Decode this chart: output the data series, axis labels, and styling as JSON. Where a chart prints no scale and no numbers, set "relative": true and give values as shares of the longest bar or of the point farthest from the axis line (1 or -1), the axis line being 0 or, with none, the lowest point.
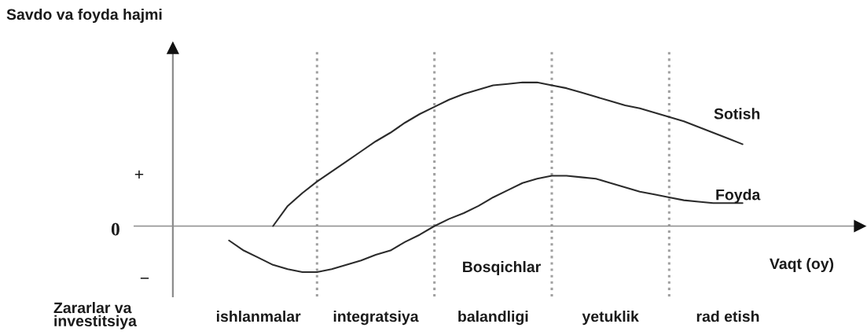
{
  "chart_data": {
    "type": "line",
    "relative": true,
    "ylabel": "Savdo va foyda hajmi",
    "xlabel": "Vaqt (oy)",
    "categories": [
      null,
      null,
      null,
      null,
      "ishlanmalar",
      null,
      null,
      null,
      null,
      null,
      null,
      null,
      "integratsiya",
      null,
      null,
      null,
      null,
      null,
      null,
      null,
      "balandligi",
      null,
      null,
      null,
      null,
      null,
      null,
      null,
      "yetuklik",
      null,
      null,
      null,
      null,
      null,
      null,
      null,
      "rad etish",
      null,
      null,
      null
    ],
    "series": [
      {
        "name": "Sotish",
        "color": "#2b2b2b",
        "values": [
          null,
          null,
          null,
          null,
          null,
          0,
          0.14,
          0.23,
          0.31,
          0.38,
          0.45,
          0.52,
          0.59,
          0.65,
          0.72,
          0.78,
          0.83,
          0.88,
          0.92,
          0.95,
          0.98,
          0.99,
          1.0,
          1.0,
          0.98,
          0.96,
          0.93,
          0.9,
          0.87,
          0.84,
          0.82,
          0.79,
          0.76,
          0.73,
          0.69,
          0.65,
          0.61,
          0.57,
          null,
          null
        ]
      },
      {
        "name": "Foyda",
        "color": "#2b2b2b",
        "values": [
          null,
          null,
          -0.1,
          -0.17,
          -0.22,
          -0.27,
          -0.3,
          -0.32,
          -0.32,
          -0.3,
          -0.27,
          -0.24,
          -0.2,
          -0.17,
          -0.11,
          -0.06,
          0,
          0.05,
          0.09,
          0.14,
          0.2,
          0.25,
          0.3,
          0.33,
          0.35,
          0.35,
          0.34,
          0.33,
          0.3,
          0.27,
          0.24,
          0.22,
          0.2,
          0.18,
          0.17,
          0.16,
          0.16,
          0.16,
          null,
          null
        ]
      }
    ],
    "ref_lines": [
      {
        "axis": "y",
        "value": 0,
        "label": "0",
        "color": "#8c8c8c",
        "line_style": "solid"
      }
    ],
    "annotations": [
      "Bosqichlar",
      "Zararlar va\ninvestitsiya",
      "+",
      "−"
    ],
    "legend": false,
    "grid": "x",
    "line_style": "solid"
  }
}
